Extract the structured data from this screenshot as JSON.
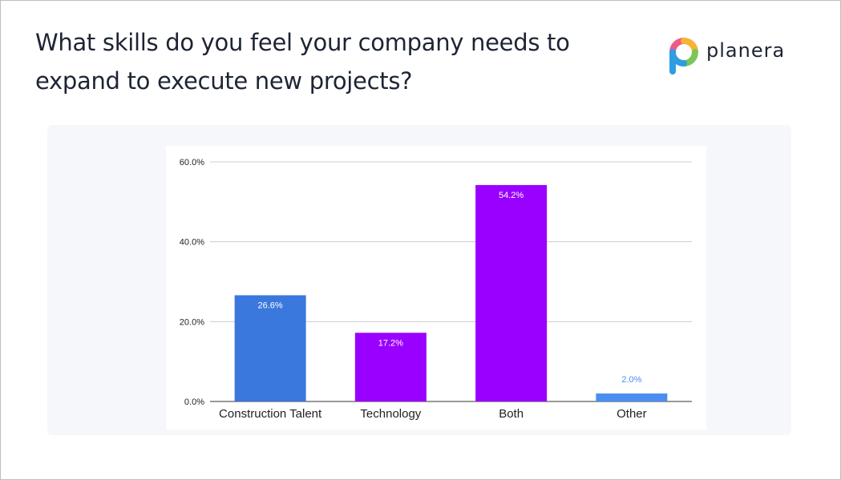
{
  "header": {
    "title": "What skills do you feel your company needs to expand to execute new projects?"
  },
  "brand": {
    "name": "planera",
    "logo_icon": "planera-p-logo-icon",
    "logo_colors": [
      "#f05a87",
      "#f8b234",
      "#7bc657",
      "#2f9de0"
    ]
  },
  "chart_data": {
    "type": "bar",
    "title": "",
    "xlabel": "",
    "ylabel": "",
    "categories": [
      "Construction Talent",
      "Technology",
      "Both",
      "Other"
    ],
    "values": [
      26.6,
      17.2,
      54.2,
      2.0
    ],
    "value_labels": [
      "26.6%",
      "17.2%",
      "54.2%",
      "2.0%"
    ],
    "colors": [
      "#3b78dd",
      "#9a00ff",
      "#9a00ff",
      "#4a8ff0"
    ],
    "ylim": [
      0,
      60
    ],
    "yticks": [
      0,
      20,
      40,
      60
    ],
    "ytick_labels": [
      "0.0%",
      "20.0%",
      "40.0%",
      "60.0%"
    ],
    "grid": true,
    "legend": "none"
  }
}
